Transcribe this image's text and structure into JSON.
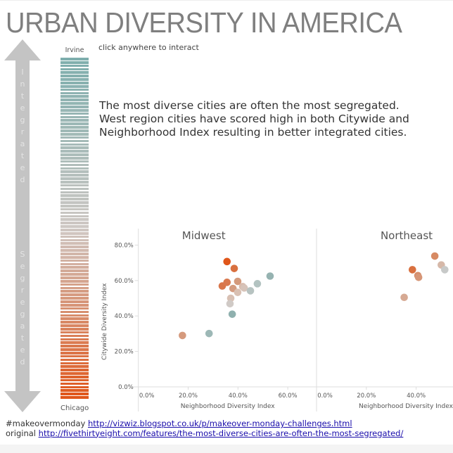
{
  "title": "URBAN DIVERSITY IN AMERICA",
  "hint": "click anywhere to interact",
  "arrow": {
    "top_word": "Integrated",
    "bottom_word": "Segregated"
  },
  "rank_bar": {
    "top_label": "Irvine",
    "bottom_label": "Chicago",
    "top_color": "#7eaead",
    "mid_color": "#cfc8c4",
    "bottom_color": "#e0561a",
    "stripe_count": 100
  },
  "headline": [
    "The most diverse cities are often the most segregated.",
    "West region cities have scored high in both Citywide and",
    "Neighborhood Index resulting in better integrated cities."
  ],
  "footer": {
    "line1_prefix": "#makeovermonday",
    "line1_link": "http://vizwiz.blogspot.co.uk/p/makeover-monday-challenges.html",
    "line2_prefix": "original",
    "line2_link": "http://fivethirtyeight.com/features/the-most-diverse-cities-are-often-the-most-segregated/"
  },
  "chart_data": [
    {
      "type": "scatter",
      "title": "Midwest",
      "xlabel": "Neighborhood Diversity Index",
      "ylabel": "Citywide Diversity Index",
      "xlim": [
        0,
        70
      ],
      "ylim": [
        0,
        85
      ],
      "xticks": [
        "0.0%",
        "20.0%",
        "40.0%",
        "60.0%"
      ],
      "xtick_values": [
        0,
        20,
        40,
        60
      ],
      "yticks": [
        "0.0%",
        "20.0%",
        "40.0%",
        "60.0%",
        "80.0%"
      ],
      "ytick_values": [
        0,
        20,
        40,
        60,
        80
      ],
      "points": [
        {
          "x": 35.6,
          "y": 70.7,
          "color": "#e0561a"
        },
        {
          "x": 38.5,
          "y": 66.8,
          "color": "#d9703f"
        },
        {
          "x": 52.9,
          "y": 62.5,
          "color": "#96b3b1"
        },
        {
          "x": 33.7,
          "y": 56.9,
          "color": "#d9764a"
        },
        {
          "x": 35.6,
          "y": 59.0,
          "color": "#d9794f"
        },
        {
          "x": 39.9,
          "y": 59.5,
          "color": "#d49a7c"
        },
        {
          "x": 38.0,
          "y": 55.5,
          "color": "#d49c80"
        },
        {
          "x": 41.9,
          "y": 56.6,
          "color": "#d8bcae"
        },
        {
          "x": 42.5,
          "y": 55.8,
          "color": "#d6c3b9"
        },
        {
          "x": 39.9,
          "y": 53.3,
          "color": "#d9c0b2"
        },
        {
          "x": 45.0,
          "y": 54.2,
          "color": "#b7c3c1"
        },
        {
          "x": 47.8,
          "y": 58.2,
          "color": "#b3c3c1"
        },
        {
          "x": 37.1,
          "y": 50.0,
          "color": "#d8c0b3"
        },
        {
          "x": 36.8,
          "y": 46.9,
          "color": "#d0cac6"
        },
        {
          "x": 37.7,
          "y": 41.0,
          "color": "#8fb0ae"
        },
        {
          "x": 28.4,
          "y": 30.1,
          "color": "#9db8b6"
        },
        {
          "x": 17.7,
          "y": 29.0,
          "color": "#d59a7d"
        }
      ]
    },
    {
      "type": "scatter",
      "title": "Northeast",
      "xlabel": "Neighborhood Diversity Index",
      "ylabel": "",
      "xlim": [
        0,
        70
      ],
      "ylim": [
        0,
        85
      ],
      "xticks": [
        "0.0%",
        "20.0%",
        "40.0%"
      ],
      "xtick_values": [
        0,
        20,
        40
      ],
      "points": [
        {
          "x": 47.5,
          "y": 73.8,
          "color": "#d78a63"
        },
        {
          "x": 50.1,
          "y": 68.8,
          "color": "#d6b8a8"
        },
        {
          "x": 51.5,
          "y": 66.1,
          "color": "#c7c9c8"
        },
        {
          "x": 38.5,
          "y": 66.1,
          "color": "#d9703f"
        },
        {
          "x": 40.7,
          "y": 62.8,
          "color": "#d58e6c"
        },
        {
          "x": 41.0,
          "y": 61.8,
          "color": "#d69677"
        },
        {
          "x": 35.2,
          "y": 50.5,
          "color": "#d6a993"
        }
      ]
    }
  ]
}
